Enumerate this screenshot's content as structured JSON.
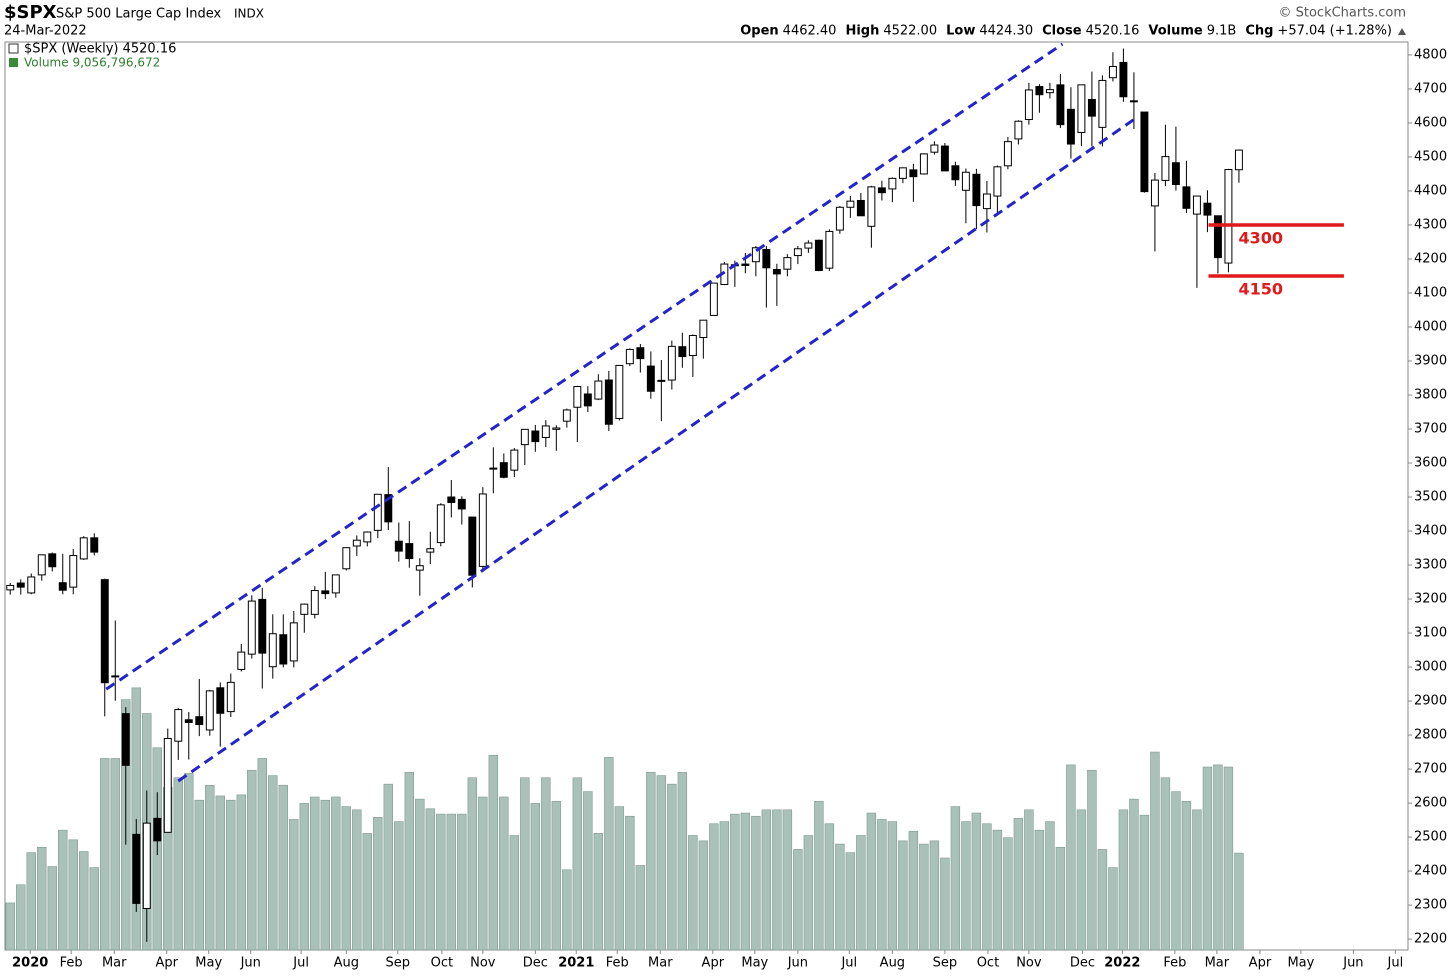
{
  "chart_data": {
    "type": "candlestick",
    "header": {
      "symbol": "$SPX",
      "name": "S&P 500 Large Cap Index",
      "exchange": "INDX",
      "date": "24-Mar-2022",
      "quote": [
        {
          "label": "Open",
          "value": "4462.40"
        },
        {
          "label": "High",
          "value": "4522.00"
        },
        {
          "label": "Low",
          "value": "4424.30"
        },
        {
          "label": "Close",
          "value": "4520.16"
        },
        {
          "label": "Volume",
          "value": "9.1B"
        },
        {
          "label": "Chg",
          "value": "+57.04 (+1.28%)"
        }
      ],
      "source": "© StockCharts.com"
    },
    "legend": [
      "$SPX (Weekly) 4520.16",
      "Volume 9,056,796,672"
    ],
    "open": [
      3227,
      3247,
      3218,
      3271,
      3333,
      3248,
      3235,
      3318,
      3380,
      3257,
      2974,
      2863,
      2508,
      2290,
      2555,
      2514,
      2782,
      2845,
      2854,
      2815,
      2939,
      2869,
      2993,
      3038,
      3199,
      3001,
      3095,
      3018,
      3155,
      3155,
      3224,
      3218,
      3289,
      3356,
      3368,
      3402,
      3507,
      3370,
      3363,
      3285,
      3338,
      3366,
      3500,
      3493,
      3441,
      3296,
      3583,
      3601,
      3579,
      3654,
      3694,
      3675,
      3699,
      3723,
      3764,
      3803,
      3788,
      3844,
      3731,
      3892,
      3939,
      3885,
      3843,
      3844,
      3942,
      3916,
      3969,
      4034,
      4125,
      4183,
      4185,
      4192,
      4228,
      4169,
      4170,
      4210,
      4232,
      4255,
      4173,
      4285,
      4352,
      4372,
      4296,
      4409,
      4406,
      4437,
      4462,
      4450,
      4514,
      4532,
      4474,
      4402,
      4449,
      4348,
      4385,
      4474,
      4553,
      4610,
      4707,
      4689,
      4712,
      4640,
      4572,
      4669,
      4587,
      4733,
      4778,
      4665,
      4632,
      4356,
      4431,
      4483,
      4412,
      4332,
      4364,
      4327,
      4188,
      4462.4
    ],
    "high": [
      3247,
      3258,
      3275,
      3330,
      3337,
      3333,
      3347,
      3385,
      3393,
      3260,
      3137,
      2882,
      2553,
      2637,
      2632,
      2819,
      2880,
      2868,
      2965,
      2933,
      2955,
      2981,
      3068,
      3211,
      3233,
      3155,
      3155,
      3165,
      3187,
      3238,
      3280,
      3272,
      3352,
      3387,
      3399,
      3509,
      3588,
      3425,
      3429,
      3320,
      3398,
      3482,
      3550,
      3502,
      3441,
      3529,
      3646,
      3628,
      3644,
      3699,
      3712,
      3726,
      3711,
      3760,
      3827,
      3826,
      3861,
      3871,
      3887,
      3937,
      3950,
      3928,
      3903,
      3960,
      3983,
      3978,
      4021,
      4129,
      4191,
      4195,
      4218,
      4238,
      4238,
      4186,
      4214,
      4238,
      4255,
      4257,
      4287,
      4356,
      4385,
      4394,
      4415,
      4430,
      4440,
      4468,
      4480,
      4511,
      4546,
      4541,
      4486,
      4466,
      4465,
      4429,
      4475,
      4559,
      4608,
      4718,
      4714,
      4718,
      4744,
      4705,
      4713,
      4751,
      4740,
      4808,
      4819,
      4749,
      4632,
      4453,
      4595,
      4589,
      4489,
      4385,
      4402,
      4327,
      4465,
      4522.0
    ],
    "low": [
      3213,
      3213,
      3214,
      3254,
      3281,
      3214,
      3214,
      3315,
      3328,
      2855,
      2901,
      2478,
      2280,
      2192,
      2447,
      2514,
      2727,
      2728,
      2797,
      2798,
      2766,
      2853,
      2987,
      3025,
      2937,
      2966,
      2999,
      2999,
      3101,
      3143,
      3200,
      3204,
      3284,
      3327,
      3355,
      3379,
      3403,
      3310,
      3292,
      3210,
      3303,
      3355,
      3440,
      3419,
      3234,
      3279,
      3511,
      3555,
      3559,
      3594,
      3633,
      3647,
      3636,
      3704,
      3662,
      3750,
      3785,
      3694,
      3725,
      3885,
      3866,
      3789,
      3723,
      3816,
      3880,
      3853,
      3907,
      4034,
      4123,
      4118,
      4158,
      4149,
      4057,
      4062,
      4149,
      4185,
      4218,
      4164,
      4165,
      4274,
      4321,
      4327,
      4233,
      4372,
      4367,
      4423,
      4368,
      4448,
      4507,
      4459,
      4415,
      4305,
      4288,
      4278,
      4330,
      4464,
      4537,
      4595,
      4630,
      4672,
      4585,
      4495,
      4532,
      4531,
      4531,
      4722,
      4662,
      4582,
      4395,
      4222,
      4414,
      4401,
      4335,
      4115,
      4279,
      4157,
      4161,
      4424.3
    ],
    "close": [
      3240,
      3235,
      3265,
      3330,
      3295,
      3226,
      3328,
      3380,
      3338,
      2954,
      2972,
      2711,
      2305,
      2541,
      2489,
      2790,
      2875,
      2837,
      2831,
      2930,
      2864,
      2955,
      3044,
      3194,
      3041,
      3098,
      3009,
      3130,
      3185,
      3225,
      3216,
      3271,
      3351,
      3373,
      3397,
      3508,
      3427,
      3341,
      3319,
      3298,
      3348,
      3477,
      3484,
      3465,
      3270,
      3509,
      3585,
      3558,
      3638,
      3699,
      3663,
      3709,
      3703,
      3756,
      3825,
      3768,
      3841,
      3714,
      3887,
      3934,
      3907,
      3811,
      3842,
      3943,
      3913,
      3975,
      4020,
      4129,
      4185,
      4180,
      4181,
      4233,
      4174,
      4156,
      4204,
      4230,
      4247,
      4166,
      4281,
      4352,
      4370,
      4327,
      4412,
      4395,
      4437,
      4468,
      4442,
      4509,
      4535,
      4459,
      4433,
      4455,
      4357,
      4391,
      4471,
      4545,
      4605,
      4697,
      4683,
      4698,
      4595,
      4538,
      4712,
      4620,
      4725,
      4766,
      4677,
      4663,
      4398,
      4432,
      4501,
      4419,
      4349,
      4385,
      4329,
      4204,
      4463,
      4520.16
    ],
    "volume": [
      4400000000.0,
      6100000000.0,
      9100000000.0,
      9600000000.0,
      7800000000.0,
      11200000000.0,
      10300000000.0,
      9200000000.0,
      7700000000.0,
      17900000000.0,
      17900000000.0,
      23400000000.0,
      24500000000.0,
      22100000000.0,
      18900000000.0,
      15200000000.0,
      16100000000.0,
      16500000000.0,
      14000000000.0,
      15400000000.0,
      14400000000.0,
      14000000000.0,
      14500000000.0,
      16800000000.0,
      17900000000.0,
      16300000000.0,
      15400000000.0,
      12200000000.0,
      13700000000.0,
      14300000000.0,
      14000000000.0,
      14300000000.0,
      13400000000.0,
      13100000000.0,
      10900000000.0,
      12400000000.0,
      15500000000.0,
      12000000000.0,
      16600000000.0,
      14100000000.0,
      13200000000.0,
      12700000000.0,
      12700000000.0,
      12700000000.0,
      16100000000.0,
      14300000000.0,
      18200000000.0,
      14300000000.0,
      10700000000.0,
      16100000000.0,
      13700000000.0,
      16100000000.0,
      13900000000.0,
      7500000000.0,
      16100000000.0,
      14800000000.0,
      10900000000.0,
      18000000000.0,
      13400000000.0,
      12500000000.0,
      7900000000.0,
      16600000000.0,
      16300000000.0,
      15500000000.0,
      16600000000.0,
      10700000000.0,
      10200000000.0,
      11800000000.0,
      12000000000.0,
      12700000000.0,
      12800000000.0,
      12500000000.0,
      13100000000.0,
      13100000000.0,
      13100000000.0,
      9400000000.0,
      10700000000.0,
      13900000000.0,
      11800000000.0,
      9900000000.0,
      9100000000.0,
      10700000000.0,
      12800000000.0,
      12200000000.0,
      12000000000.0,
      10200000000.0,
      11100000000.0,
      9900000000.0,
      10200000000.0,
      8600000000.0,
      13400000000.0,
      12000000000.0,
      12800000000.0,
      11800000000.0,
      11200000000.0,
      10500000000.0,
      12300000000.0,
      13100000000.0,
      11200000000.0,
      12000000000.0,
      9600000000.0,
      17300000000.0,
      13100000000.0,
      16800000000.0,
      9400000000.0,
      7700000000.0,
      13100000000.0,
      14100000000.0,
      12600000000.0,
      18500000000.0,
      16100000000.0,
      14800000000.0,
      13900000000.0,
      13100000000.0,
      17100000000.0,
      17300000000.0,
      17100000000.0,
      9056796672
    ],
    "up_color": "#ffffff",
    "down_color": "#000000",
    "volume_color": "#a9c1b9",
    "xlim": [
      -0.5,
      133.1
    ],
    "ylim": [
      2168,
      4838
    ],
    "volume_lim": [
      0,
      30000000000.0
    ],
    "yticks": [
      2200,
      2300,
      2400,
      2500,
      2600,
      2700,
      2800,
      2900,
      3000,
      3100,
      3200,
      3300,
      3400,
      3500,
      3600,
      3700,
      3800,
      3900,
      4000,
      4100,
      4200,
      4300,
      4400,
      4500,
      4600,
      4700,
      4800
    ],
    "xticks": [
      {
        "value": 1.9,
        "label": "2020"
      },
      {
        "value": 5.8,
        "label": "Feb"
      },
      {
        "value": 9.9,
        "label": "Mar"
      },
      {
        "value": 14.9,
        "label": "Apr"
      },
      {
        "value": 18.9,
        "label": "May"
      },
      {
        "value": 22.9,
        "label": "Jun"
      },
      {
        "value": 27.7,
        "label": "Jul"
      },
      {
        "value": 32,
        "label": "Aug"
      },
      {
        "value": 36.9,
        "label": "Sep"
      },
      {
        "value": 41.1,
        "label": "Oct"
      },
      {
        "value": 45,
        "label": "Nov"
      },
      {
        "value": 50,
        "label": "Dec"
      },
      {
        "value": 53.9,
        "label": "2021"
      },
      {
        "value": 57.8,
        "label": "Feb"
      },
      {
        "value": 61.9,
        "label": "Mar"
      },
      {
        "value": 66.9,
        "label": "Apr"
      },
      {
        "value": 70.9,
        "label": "May"
      },
      {
        "value": 75,
        "label": "Jun"
      },
      {
        "value": 79.9,
        "label": "Jul"
      },
      {
        "value": 84,
        "label": "Aug"
      },
      {
        "value": 89,
        "label": "Sep"
      },
      {
        "value": 93.1,
        "label": "Oct"
      },
      {
        "value": 97,
        "label": "Nov"
      },
      {
        "value": 102.1,
        "label": "Dec"
      },
      {
        "value": 105.9,
        "label": "2022"
      },
      {
        "value": 110.9,
        "label": "Feb"
      },
      {
        "value": 114.9,
        "label": "Mar"
      },
      {
        "value": 119,
        "label": "Apr"
      },
      {
        "value": 122.9,
        "label": "May"
      },
      {
        "value": 127.9,
        "label": "Jun"
      },
      {
        "value": 131.9,
        "label": "Jul"
      }
    ],
    "trendlines": [
      {
        "x": [
          9.14,
          100.2
        ],
        "y": [
          2935,
          4832
        ],
        "color": "#2424c8"
      },
      {
        "x": [
          16,
          106.95
        ],
        "y": [
          2665,
          4609
        ],
        "color": "#2424c8"
      }
    ],
    "levels": [
      {
        "value": 4300,
        "x": [
          114.1,
          127
        ],
        "color": "#e0191b"
      },
      {
        "value": 4150,
        "x": [
          114.1,
          127
        ],
        "color": "#e0191b"
      }
    ]
  }
}
